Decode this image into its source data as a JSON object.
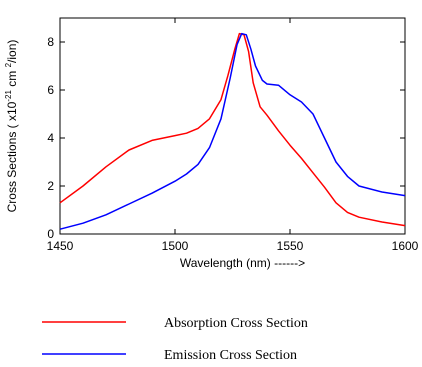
{
  "chart_data": {
    "type": "line",
    "xlabel": "Wavelength (nm) ------>",
    "ylabel": {
      "prefix": "Cross Sections ( x10",
      "exp1": "-21",
      "middle": " cm ",
      "exp2": "2",
      "suffix": "/ion)"
    },
    "xlim": [
      1450,
      1600
    ],
    "ylim": [
      0,
      9
    ],
    "xticks": [
      1450,
      1500,
      1550,
      1600
    ],
    "yticks": [
      0,
      2,
      4,
      6,
      8
    ],
    "grid": false,
    "legend_placement": "bottom",
    "series": [
      {
        "name": "Absorption Cross Section",
        "color": "#ff0000",
        "x": [
          1450,
          1460,
          1470,
          1480,
          1490,
          1500,
          1505,
          1510,
          1515,
          1520,
          1523,
          1526,
          1528,
          1530,
          1532,
          1534,
          1537,
          1540,
          1545,
          1550,
          1555,
          1560,
          1565,
          1570,
          1575,
          1580,
          1590,
          1600
        ],
        "y": [
          1.3,
          2.0,
          2.8,
          3.5,
          3.9,
          4.1,
          4.2,
          4.4,
          4.8,
          5.6,
          6.6,
          7.7,
          8.35,
          8.3,
          7.6,
          6.3,
          5.3,
          4.95,
          4.3,
          3.7,
          3.15,
          2.55,
          1.95,
          1.3,
          0.9,
          0.7,
          0.5,
          0.35
        ]
      },
      {
        "name": "Emission Cross Section",
        "color": "#0000ff",
        "x": [
          1450,
          1460,
          1470,
          1480,
          1490,
          1500,
          1505,
          1510,
          1515,
          1520,
          1524,
          1527,
          1529,
          1531,
          1533,
          1535,
          1538,
          1540,
          1545,
          1550,
          1555,
          1560,
          1565,
          1570,
          1575,
          1580,
          1590,
          1600
        ],
        "y": [
          0.2,
          0.45,
          0.8,
          1.25,
          1.7,
          2.2,
          2.5,
          2.9,
          3.6,
          4.8,
          6.5,
          7.9,
          8.35,
          8.3,
          7.7,
          7.0,
          6.4,
          6.25,
          6.2,
          5.8,
          5.5,
          5.0,
          4.0,
          3.0,
          2.4,
          2.0,
          1.75,
          1.6
        ]
      }
    ]
  }
}
